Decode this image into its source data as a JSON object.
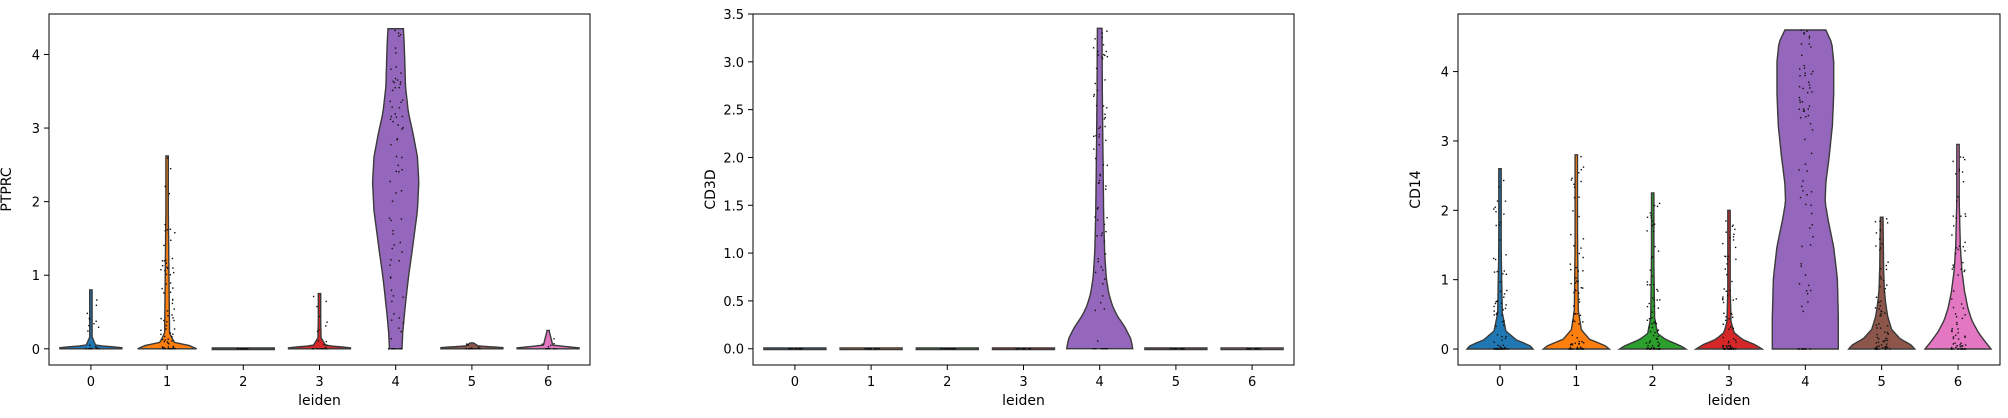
{
  "chart_data": [
    {
      "type": "violin",
      "xlabel": "leiden",
      "ylabel": "PTPRC",
      "categories": [
        "0",
        "1",
        "2",
        "3",
        "4",
        "5",
        "6"
      ],
      "ylim": [
        -0.22,
        4.55
      ],
      "yticks": [
        0,
        1,
        2,
        3,
        4
      ],
      "category_max": [
        0.8,
        2.62,
        0.02,
        0.75,
        4.35,
        0.08,
        0.25
      ],
      "colors": [
        "#1f77b4",
        "#ff7f0e",
        "#2ca02c",
        "#d62728",
        "#9467bd",
        "#8c564b",
        "#e377c2"
      ],
      "grid": false,
      "legend": "none"
    },
    {
      "type": "violin",
      "xlabel": "leiden",
      "ylabel": "CD3D",
      "categories": [
        "0",
        "1",
        "2",
        "3",
        "4",
        "5",
        "6"
      ],
      "ylim": [
        -0.17,
        3.5
      ],
      "yticks": [
        0.0,
        0.5,
        1.0,
        1.5,
        2.0,
        2.5,
        3.0,
        3.5
      ],
      "category_max": [
        0,
        0,
        0,
        0,
        3.35,
        0,
        0
      ],
      "colors": [
        "#1f77b4",
        "#ff7f0e",
        "#2ca02c",
        "#d62728",
        "#9467bd",
        "#8c564b",
        "#e377c2"
      ],
      "grid": false,
      "legend": "none"
    },
    {
      "type": "violin",
      "xlabel": "leiden",
      "ylabel": "CD14",
      "categories": [
        "0",
        "1",
        "2",
        "3",
        "4",
        "5",
        "6"
      ],
      "ylim": [
        -0.23,
        4.83
      ],
      "yticks": [
        0,
        1,
        2,
        3,
        4
      ],
      "category_max": [
        2.6,
        2.8,
        2.25,
        2.0,
        4.6,
        1.9,
        2.95
      ],
      "colors": [
        "#1f77b4",
        "#ff7f0e",
        "#2ca02c",
        "#d62728",
        "#9467bd",
        "#8c564b",
        "#e377c2"
      ],
      "grid": false,
      "legend": "none"
    }
  ]
}
